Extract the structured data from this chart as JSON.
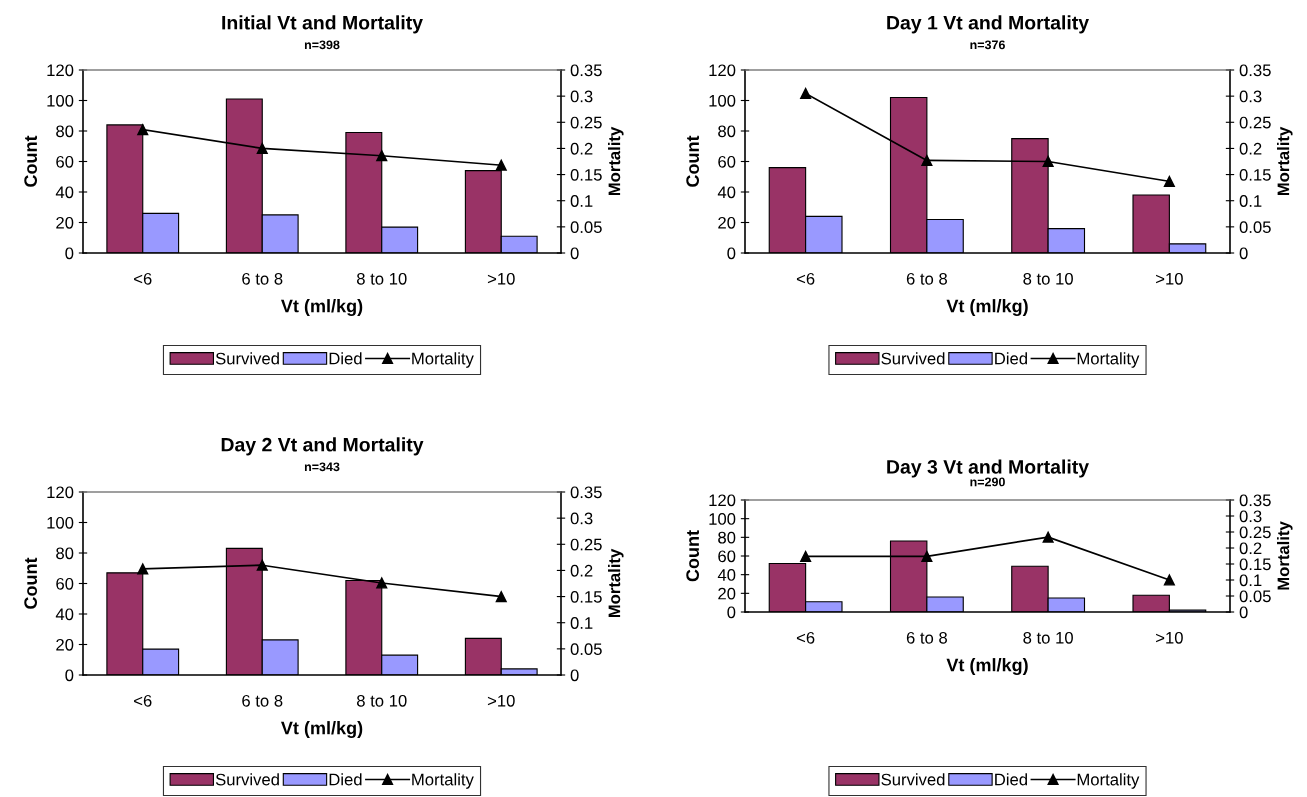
{
  "chart_data": [
    {
      "type": "bar",
      "title": "Initial Vt and Mortality",
      "subtitle": "n=398",
      "xlabel": "Vt (ml/kg)",
      "ylabel": "Count",
      "y2label": "Mortality",
      "categories": [
        "<6",
        "6 to 8",
        "8 to 10",
        ">10"
      ],
      "ylim": [
        0,
        120
      ],
      "yticks": [
        0,
        20,
        40,
        60,
        80,
        100,
        120
      ],
      "y2lim": [
        0,
        0.35
      ],
      "y2ticks": [
        0,
        0.05,
        0.1,
        0.15,
        0.2,
        0.25,
        0.3,
        0.35
      ],
      "legend": "bottom",
      "series": [
        {
          "name": "Survived",
          "color": "#993366",
          "values": [
            84,
            101,
            79,
            54
          ]
        },
        {
          "name": "Died",
          "color": "#9999ff",
          "values": [
            26,
            25,
            17,
            11
          ]
        },
        {
          "name": "Mortality",
          "type": "line",
          "axis": "y2",
          "color": "#000000",
          "marker": "triangle",
          "values": [
            0.236,
            0.2,
            0.186,
            0.168
          ]
        }
      ]
    },
    {
      "type": "bar",
      "title": "Day 1 Vt and Mortality",
      "subtitle": "n=376",
      "xlabel": "Vt (ml/kg)",
      "ylabel": "Count",
      "y2label": "Mortality",
      "categories": [
        "<6",
        "6 to 8",
        "8 to 10",
        ">10"
      ],
      "ylim": [
        0,
        120
      ],
      "yticks": [
        0,
        20,
        40,
        60,
        80,
        100,
        120
      ],
      "y2lim": [
        0,
        0.35
      ],
      "y2ticks": [
        0,
        0.05,
        0.1,
        0.15,
        0.2,
        0.25,
        0.3,
        0.35
      ],
      "legend": "bottom",
      "series": [
        {
          "name": "Survived",
          "color": "#993366",
          "values": [
            56,
            102,
            75,
            38
          ]
        },
        {
          "name": "Died",
          "color": "#9999ff",
          "values": [
            24,
            22,
            16,
            6
          ]
        },
        {
          "name": "Mortality",
          "type": "line",
          "axis": "y2",
          "color": "#000000",
          "marker": "triangle",
          "values": [
            0.305,
            0.177,
            0.175,
            0.137
          ]
        }
      ]
    },
    {
      "type": "bar",
      "title": "Day 2 Vt and Mortality",
      "subtitle": "n=343",
      "xlabel": "Vt (ml/kg)",
      "ylabel": "Count",
      "y2label": "Mortality",
      "categories": [
        "<6",
        "6 to 8",
        "8 to 10",
        ">10"
      ],
      "ylim": [
        0,
        120
      ],
      "yticks": [
        0,
        20,
        40,
        60,
        80,
        100,
        120
      ],
      "y2lim": [
        0,
        0.35
      ],
      "y2ticks": [
        0,
        0.05,
        0.1,
        0.15,
        0.2,
        0.25,
        0.3,
        0.35
      ],
      "legend": "bottom",
      "series": [
        {
          "name": "Survived",
          "color": "#993366",
          "values": [
            67,
            83,
            62,
            24
          ]
        },
        {
          "name": "Died",
          "color": "#9999ff",
          "values": [
            17,
            23,
            13,
            4
          ]
        },
        {
          "name": "Mortality",
          "type": "line",
          "axis": "y2",
          "color": "#000000",
          "marker": "triangle",
          "values": [
            0.203,
            0.21,
            0.176,
            0.15
          ]
        }
      ]
    },
    {
      "type": "bar",
      "title": "Day 3 Vt and Mortality",
      "subtitle": "n=290",
      "xlabel": "Vt (ml/kg)",
      "ylabel": "Count",
      "y2label": "Mortality",
      "categories": [
        "<6",
        "6 to 8",
        "8 to 10",
        ">10"
      ],
      "ylim": [
        0,
        120
      ],
      "yticks": [
        0,
        20,
        40,
        60,
        80,
        100,
        120
      ],
      "y2lim": [
        0,
        0.35
      ],
      "y2ticks": [
        0,
        0.05,
        0.1,
        0.15,
        0.2,
        0.25,
        0.3,
        0.35
      ],
      "legend": "bottom",
      "series": [
        {
          "name": "Survived",
          "color": "#993366",
          "values": [
            52,
            76,
            49,
            18
          ]
        },
        {
          "name": "Died",
          "color": "#9999ff",
          "values": [
            11,
            16,
            15,
            2
          ]
        },
        {
          "name": "Mortality",
          "type": "line",
          "axis": "y2",
          "color": "#000000",
          "marker": "triangle",
          "values": [
            0.174,
            0.174,
            0.234,
            0.1
          ]
        }
      ]
    }
  ]
}
